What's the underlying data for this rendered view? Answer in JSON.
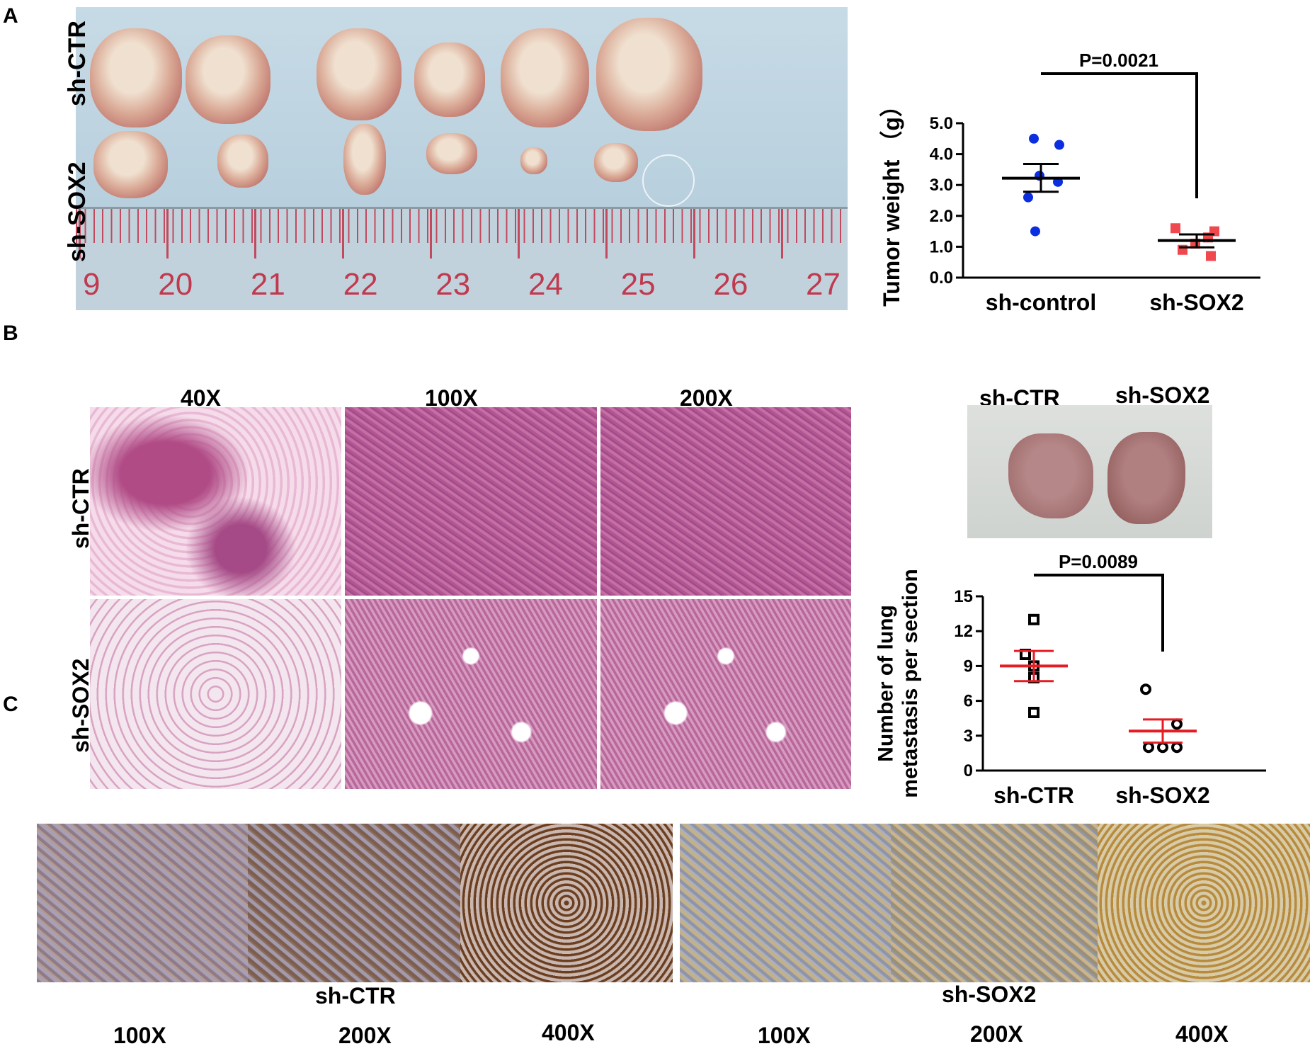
{
  "panels": {
    "a": {
      "letter": "A"
    },
    "b": {
      "letter": "B"
    },
    "c": {
      "letter": "C"
    }
  },
  "panel_a_photo": {
    "row_labels": [
      "sh-CTR",
      "sh-SOX2"
    ],
    "ruler_numbers": [
      "9",
      "20",
      "21",
      "22",
      "23",
      "24",
      "25",
      "26",
      "27"
    ]
  },
  "panel_b_histology": {
    "magnifications": [
      "40X",
      "100X",
      "200X"
    ],
    "row_labels": [
      "sh-CTR",
      "sh-SOX2"
    ]
  },
  "panel_b_lung_photo": {
    "labels": [
      "sh-CTR",
      "sh-SOX2"
    ]
  },
  "panel_c": {
    "group_labels": [
      "sh-CTR",
      "sh-SOX2"
    ],
    "magnifications": [
      "100X",
      "200X",
      "400X",
      "100X",
      "200X",
      "400X"
    ]
  },
  "chart_data": [
    {
      "type": "scatter",
      "title": "",
      "ylabel": "Tumor weight （g）",
      "xlabel": "",
      "categories": [
        "sh-control",
        "sh-SOX2"
      ],
      "ylim": [
        0,
        5
      ],
      "yticks": [
        "0.0",
        "1.0",
        "2.0",
        "3.0",
        "4.0",
        "5.0"
      ],
      "annotation": "P=0.0021",
      "series": [
        {
          "values": [
            4.5,
            4.3,
            3.3,
            3.1,
            2.6,
            1.5
          ],
          "mean": 3.22,
          "sem_low": 2.78,
          "sem_high": 3.68,
          "color": "#0b2fe0",
          "marker": "circle"
        },
        {
          "values": [
            1.6,
            1.5,
            1.3,
            1.1,
            0.9,
            0.7
          ],
          "mean": 1.2,
          "sem_low": 0.98,
          "sem_high": 1.4,
          "color": "#f0484f",
          "marker": "square"
        }
      ]
    },
    {
      "type": "scatter",
      "title": "",
      "ylabel": "Number of lung metastasis per section",
      "xlabel": "",
      "categories": [
        "sh-CTR",
        "sh-SOX2"
      ],
      "ylim": [
        0,
        15
      ],
      "yticks": [
        "0",
        "3",
        "6",
        "9",
        "12",
        "15"
      ],
      "annotation": "P=0.0089",
      "series": [
        {
          "values": [
            13,
            10,
            9,
            8,
            5
          ],
          "mean": 9.0,
          "sem_low": 7.7,
          "sem_high": 10.3,
          "color": "#000000",
          "marker": "open-square"
        },
        {
          "values": [
            7,
            4,
            2,
            2,
            2
          ],
          "mean": 3.4,
          "sem_low": 2.4,
          "sem_high": 4.4,
          "color": "#000000",
          "marker": "open-circle"
        }
      ],
      "errorbar_color": "#e51c23"
    }
  ]
}
